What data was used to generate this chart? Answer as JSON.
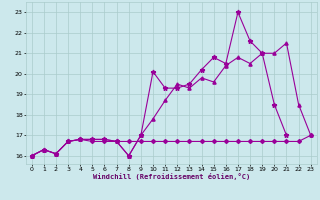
{
  "xlabel": "Windchill (Refroidissement éolien,°C)",
  "bg_color": "#cce8ec",
  "grid_color": "#aacccc",
  "line_color": "#990099",
  "x_ticks": [
    0,
    1,
    2,
    3,
    4,
    5,
    6,
    7,
    8,
    9,
    10,
    11,
    12,
    13,
    14,
    15,
    16,
    17,
    18,
    19,
    20,
    21,
    22,
    23
  ],
  "y_ticks": [
    16,
    17,
    18,
    19,
    20,
    21,
    22,
    23
  ],
  "xlim": [
    -0.5,
    23.5
  ],
  "ylim": [
    15.6,
    23.5
  ],
  "series1_x": [
    0,
    1,
    2,
    3,
    4,
    5,
    6,
    7,
    8,
    9,
    10,
    11,
    12,
    13,
    14,
    15,
    16,
    17,
    18,
    19,
    20,
    21,
    22,
    23
  ],
  "series1_y": [
    16.0,
    16.3,
    16.1,
    16.7,
    16.8,
    16.8,
    16.8,
    16.7,
    16.0,
    17.0,
    17.8,
    18.7,
    19.5,
    19.3,
    19.8,
    19.6,
    20.4,
    20.8,
    20.5,
    21.0,
    21.0,
    21.5,
    18.5,
    17.0
  ],
  "series2_x": [
    0,
    1,
    2,
    3,
    4,
    5,
    6,
    7,
    8,
    9,
    10,
    11,
    12,
    13,
    14,
    15,
    16,
    17,
    18,
    19,
    20,
    21
  ],
  "series2_y": [
    16.0,
    16.3,
    16.1,
    16.7,
    16.8,
    16.8,
    16.8,
    16.7,
    16.0,
    17.0,
    20.1,
    19.3,
    19.3,
    19.5,
    20.2,
    20.8,
    20.5,
    23.0,
    21.6,
    21.0,
    18.5,
    17.0
  ],
  "series3_x": [
    0,
    1,
    2,
    3,
    4,
    5,
    6,
    7,
    8,
    9,
    10,
    11,
    12,
    13,
    14,
    15,
    16,
    17,
    18,
    19,
    20,
    21,
    22,
    23
  ],
  "series3_y": [
    16.0,
    16.3,
    16.1,
    16.7,
    16.8,
    16.7,
    16.7,
    16.7,
    16.7,
    16.7,
    16.7,
    16.7,
    16.7,
    16.7,
    16.7,
    16.7,
    16.7,
    16.7,
    16.7,
    16.7,
    16.7,
    16.7,
    16.7,
    17.0
  ]
}
